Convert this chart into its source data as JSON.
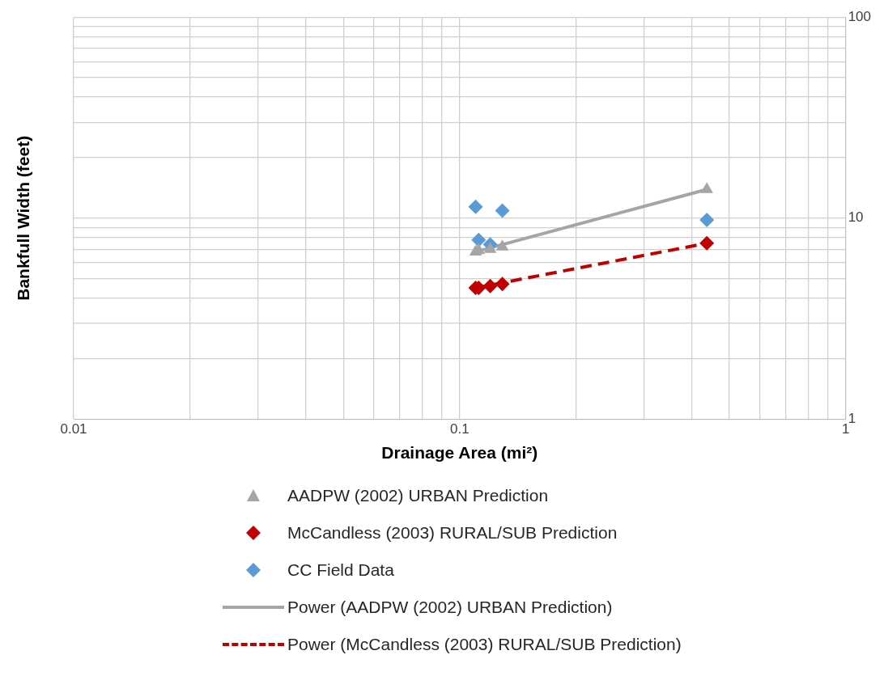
{
  "chart_data": {
    "type": "scatter",
    "xlabel": "Drainage Area (mi²)",
    "ylabel": "Bankfull Width (feet)",
    "log": "xy",
    "grid": true,
    "legend": "bottom",
    "xlim": [
      0.01,
      1
    ],
    "ylim": [
      1,
      100
    ],
    "xticks": [
      0.01,
      {
        "value": 0.02,
        "label": null
      },
      {
        "value": 0.03,
        "label": null
      },
      {
        "value": 0.04,
        "label": null
      },
      {
        "value": 0.05,
        "label": null
      },
      {
        "value": 0.06,
        "label": null
      },
      {
        "value": 0.07,
        "label": null
      },
      {
        "value": 0.08,
        "label": null
      },
      {
        "value": 0.09,
        "label": null
      },
      0.1,
      {
        "value": 0.2,
        "label": null
      },
      {
        "value": 0.3,
        "label": null
      },
      {
        "value": 0.4,
        "label": null
      },
      {
        "value": 0.5,
        "label": null
      },
      {
        "value": 0.6,
        "label": null
      },
      {
        "value": 0.7,
        "label": null
      },
      {
        "value": 0.8,
        "label": null
      },
      {
        "value": 0.9,
        "label": null
      },
      1
    ],
    "yticks": [
      1,
      {
        "value": 2,
        "label": null
      },
      {
        "value": 3,
        "label": null
      },
      {
        "value": 4,
        "label": null
      },
      {
        "value": 5,
        "label": null
      },
      {
        "value": 6,
        "label": null
      },
      {
        "value": 7,
        "label": null
      },
      {
        "value": 8,
        "label": null
      },
      {
        "value": 9,
        "label": null
      },
      10,
      {
        "value": 20,
        "label": null
      },
      {
        "value": 30,
        "label": null
      },
      {
        "value": 40,
        "label": null
      },
      {
        "value": 50,
        "label": null
      },
      {
        "value": 60,
        "label": null
      },
      {
        "value": 70,
        "label": null
      },
      {
        "value": 80,
        "label": null
      },
      {
        "value": 90,
        "label": null
      },
      100
    ],
    "series": [
      {
        "name": "AADPW (2002) URBAN Prediction",
        "marker": "triangle",
        "color": "#a5a5a5",
        "x": [
          0.11,
          0.112,
          0.12,
          0.129,
          0.437
        ],
        "values": [
          6.8,
          6.9,
          7.0,
          7.2,
          13.9
        ]
      },
      {
        "name": "McCandless (2003) RURAL/SUB Prediction",
        "marker": "diamond",
        "color": "#c00000",
        "x": [
          0.11,
          0.112,
          0.12,
          0.129,
          0.437
        ],
        "values": [
          4.5,
          4.5,
          4.6,
          4.7,
          7.5
        ]
      },
      {
        "name": "CC Field Data",
        "marker": "diamond",
        "color": "#5b9bd5",
        "x": [
          0.11,
          0.112,
          0.12,
          0.129,
          0.437
        ],
        "values": [
          11.4,
          7.8,
          7.4,
          10.9,
          9.8
        ]
      },
      {
        "name": "Power (AADPW (2002) URBAN Prediction)",
        "type": "line",
        "marker": "none",
        "line_style": "solid",
        "color": "#a5a5a5",
        "x": [
          0.11,
          0.437
        ],
        "values": [
          6.8,
          13.9
        ]
      },
      {
        "name": "Power (McCandless (2003) RURAL/SUB Prediction)",
        "type": "line",
        "marker": "none",
        "line_style": "dashed",
        "color": "#c00000",
        "x": [
          0.11,
          0.437
        ],
        "values": [
          4.5,
          7.5
        ]
      }
    ]
  }
}
